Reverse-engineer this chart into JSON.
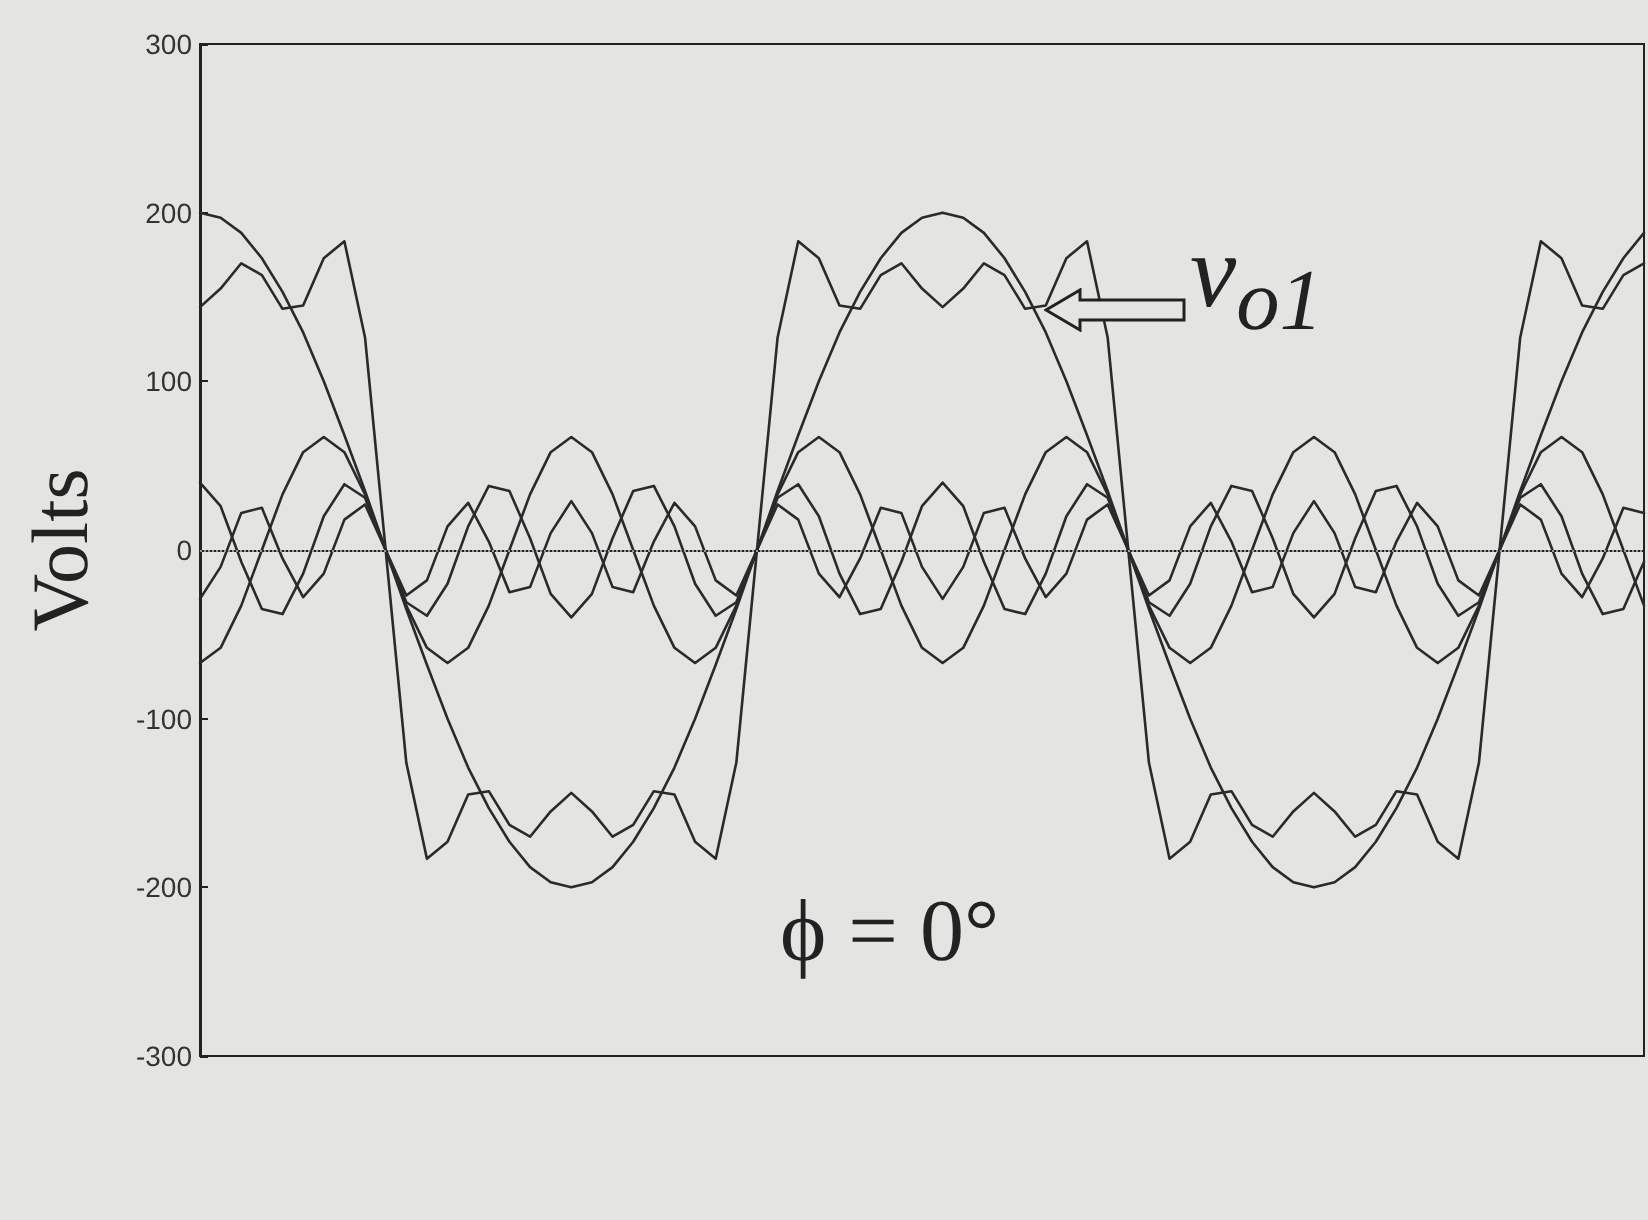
{
  "chart_data": {
    "type": "line",
    "ylabel": "Volts",
    "categories": [
      null,
      null,
      null,
      null,
      null,
      null,
      null,
      null,
      null,
      null,
      null,
      null,
      null,
      null,
      null,
      null,
      null,
      null,
      null,
      null,
      null,
      null,
      null,
      null,
      null,
      null,
      null,
      null,
      null,
      null,
      null,
      null,
      null,
      null,
      null,
      null,
      null,
      null,
      null,
      null,
      null,
      null,
      null,
      null,
      null,
      null,
      null,
      null,
      null,
      null,
      null,
      null,
      null,
      null,
      null,
      null,
      null,
      null,
      null,
      null,
      null,
      null,
      null,
      null,
      null,
      null,
      null,
      null,
      null,
      null,
      null
    ],
    "ylim": [
      -300,
      300
    ],
    "yticks": [
      -300,
      -200,
      -100,
      0,
      100,
      200,
      300
    ],
    "tick_labels": "y",
    "grid": false,
    "marker": "none",
    "line_style": "solid",
    "series": [
      {
        "color": "#2a2a2a",
        "values": [
          200,
          197,
          188,
          173,
          153,
          129,
          100,
          68,
          35,
          0,
          -35,
          -68,
          -100,
          -129,
          -153,
          -173,
          -188,
          -197,
          -200,
          -197,
          -188,
          -173,
          -153,
          -129,
          -100,
          -68,
          -35,
          0,
          35,
          68,
          100,
          129,
          153,
          173,
          188,
          197,
          200,
          197,
          188,
          173,
          153,
          129,
          100,
          68,
          35,
          0,
          -35,
          -68,
          -100,
          -129,
          -153,
          -173,
          -188,
          -197,
          -200,
          -197,
          -188,
          -173,
          -153,
          -129,
          -100,
          -68,
          -35,
          0,
          35,
          68,
          100,
          129,
          153,
          173,
          188
        ]
      },
      {
        "color": "#2a2a2a",
        "values": [
          -67,
          -58,
          -33,
          0,
          33,
          58,
          67,
          58,
          33,
          0,
          -33,
          -58,
          -67,
          -58,
          -33,
          0,
          33,
          58,
          67,
          58,
          33,
          0,
          -33,
          -58,
          -67,
          -58,
          -33,
          0,
          33,
          58,
          67,
          58,
          33,
          0,
          -33,
          -58,
          -67,
          -58,
          -33,
          0,
          33,
          58,
          67,
          58,
          33,
          0,
          -33,
          -58,
          -67,
          -58,
          -33,
          0,
          33,
          58,
          67,
          58,
          33,
          0,
          -33,
          -58,
          -67,
          -58,
          -33,
          0,
          33,
          58,
          67,
          58,
          33,
          0,
          -33
        ]
      },
      {
        "color": "#2a2a2a",
        "values": [
          40,
          26,
          -7,
          -35,
          -38,
          -14,
          20,
          39,
          31,
          0,
          -31,
          -39,
          -20,
          14,
          38,
          35,
          7,
          -26,
          -40,
          -26,
          7,
          35,
          38,
          14,
          -20,
          -39,
          -31,
          0,
          31,
          39,
          20,
          -14,
          -38,
          -35,
          -7,
          26,
          40,
          26,
          -7,
          -35,
          -38,
          -14,
          20,
          39,
          31,
          0,
          -31,
          -39,
          -20,
          14,
          38,
          35,
          7,
          -26,
          -40,
          -26,
          7,
          35,
          38,
          14,
          -20,
          -39,
          -31,
          0,
          31,
          39,
          20,
          -14,
          -38,
          -35,
          -7
        ]
      },
      {
        "color": "#2a2a2a",
        "values": [
          -29,
          -10,
          22,
          25,
          -5,
          -28,
          -14,
          18,
          27,
          0,
          -27,
          -18,
          14,
          28,
          5,
          -25,
          -22,
          10,
          29,
          10,
          -22,
          -25,
          5,
          28,
          14,
          -18,
          -27,
          0,
          27,
          18,
          -14,
          -28,
          -5,
          25,
          22,
          -10,
          -29,
          -10,
          22,
          25,
          -5,
          -28,
          -14,
          18,
          27,
          0,
          -27,
          -18,
          14,
          28,
          5,
          -25,
          -22,
          10,
          29,
          10,
          -22,
          -25,
          5,
          28,
          14,
          -18,
          -27,
          0,
          27,
          18,
          -14,
          -28,
          -5,
          25,
          22
        ]
      },
      {
        "color": "#2a2a2a",
        "values": [
          144,
          155,
          170,
          163,
          143,
          145,
          173,
          183,
          126,
          0,
          -126,
          -183,
          -173,
          -145,
          -143,
          -163,
          -170,
          -155,
          -144,
          -155,
          -170,
          -163,
          -143,
          -145,
          -173,
          -183,
          -126,
          0,
          126,
          183,
          173,
          145,
          143,
          163,
          170,
          155,
          144,
          155,
          170,
          163,
          143,
          145,
          173,
          183,
          126,
          0,
          -126,
          -183,
          -173,
          -145,
          -143,
          -163,
          -170,
          -155,
          -144,
          -155,
          -170,
          -163,
          -143,
          -145,
          -173,
          -183,
          -126,
          0,
          126,
          183,
          173,
          145,
          143,
          163,
          170
        ]
      }
    ],
    "ref_lines": [
      {
        "axis": "y",
        "value": 0,
        "color": "#999999",
        "line_style": "dotted"
      }
    ],
    "annotations": [
      "v$_{o1}$",
      "ϕ = 0°"
    ]
  }
}
